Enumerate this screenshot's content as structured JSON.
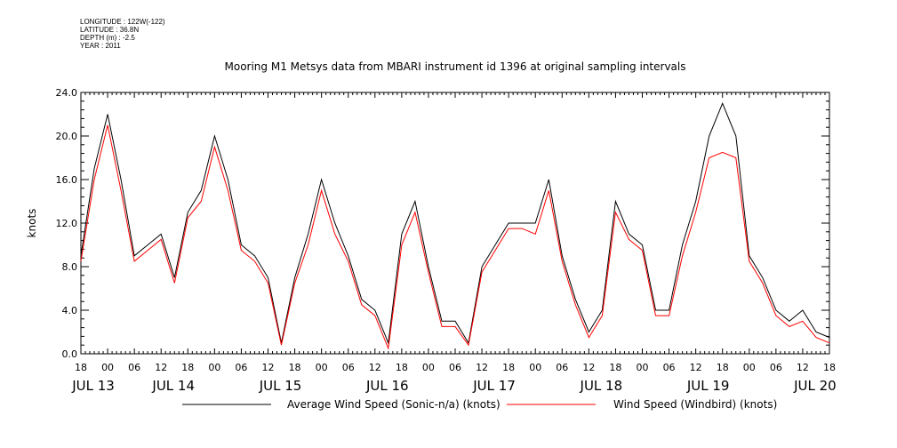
{
  "metadata": {
    "longitude": "LONGITUDE : 122W(-122)",
    "latitude": "LATITUDE : 36.8N",
    "depth": "DEPTH (m) : -2.5",
    "year": "YEAR : 2011"
  },
  "chart_data": {
    "type": "line",
    "title": "Mooring M1 Metsys data from MBARI instrument id 1396 at original sampling intervals",
    "ylabel": "knots",
    "xlabel": "",
    "ylim": [
      0,
      24
    ],
    "y_ticks": [
      "0.0",
      "4.0",
      "8.0",
      "12.0",
      "16.0",
      "20.0",
      "24.0"
    ],
    "xlim_hours": [
      0,
      168
    ],
    "x_tick_labels": [
      "18",
      "00",
      "06",
      "12",
      "18",
      "00",
      "06",
      "12",
      "18",
      "00",
      "06",
      "12",
      "18",
      "00",
      "06",
      "12",
      "18",
      "00",
      "06",
      "12",
      "18",
      "00",
      "06",
      "12",
      "18",
      "00",
      "06",
      "12",
      "18"
    ],
    "x_day_labels": [
      {
        "label": "JUL 13",
        "hour": 0
      },
      {
        "label": "JUL 14",
        "hour": 18
      },
      {
        "label": "JUL 15",
        "hour": 42
      },
      {
        "label": "JUL 16",
        "hour": 66
      },
      {
        "label": "JUL 17",
        "hour": 90
      },
      {
        "label": "JUL 18",
        "hour": 114
      },
      {
        "label": "JUL 19",
        "hour": 138
      },
      {
        "label": "JUL 20",
        "hour": 162
      }
    ],
    "series": [
      {
        "name": "Average Wind Speed (Sonic-n/a) (knots)",
        "color": "#000000",
        "x": [
          0,
          3,
          6,
          9,
          12,
          15,
          18,
          21,
          24,
          27,
          30,
          33,
          36,
          39,
          42,
          45,
          48,
          51,
          54,
          57,
          60,
          63,
          66,
          69,
          72,
          75,
          78,
          81,
          84,
          87,
          90,
          93,
          96,
          99,
          102,
          105,
          108,
          111,
          114,
          117,
          120,
          123,
          126,
          129,
          132,
          135,
          138,
          141,
          144,
          147,
          150,
          153,
          156,
          159,
          162,
          165,
          168
        ],
        "y": [
          9,
          17,
          22,
          16,
          9,
          10,
          11,
          7,
          13,
          15,
          20,
          16,
          10,
          9,
          7,
          1,
          7,
          11,
          16,
          12,
          9,
          5,
          4,
          1,
          11,
          14,
          8,
          3,
          3,
          1,
          8,
          10,
          12,
          12,
          12,
          16,
          9,
          5,
          2,
          4,
          14,
          11,
          10,
          4,
          4,
          10,
          14,
          20,
          23,
          20,
          9,
          7,
          4,
          3,
          4,
          2,
          1.5
        ]
      },
      {
        "name": "Wind Speed (Windbird) (knots)",
        "color": "#ff0000",
        "x": [
          0,
          3,
          6,
          9,
          12,
          15,
          18,
          21,
          24,
          27,
          30,
          33,
          36,
          39,
          42,
          45,
          48,
          51,
          54,
          57,
          60,
          63,
          66,
          69,
          72,
          75,
          78,
          81,
          84,
          87,
          90,
          93,
          96,
          99,
          102,
          105,
          108,
          111,
          114,
          117,
          120,
          123,
          126,
          129,
          132,
          135,
          138,
          141,
          144,
          147,
          150,
          153,
          156,
          159,
          162,
          165,
          168
        ],
        "y": [
          8.5,
          16,
          21,
          15,
          8.5,
          9.5,
          10.5,
          6.5,
          12.5,
          14,
          19,
          15,
          9.5,
          8.5,
          6.5,
          0.8,
          6.5,
          10,
          15,
          11,
          8.5,
          4.5,
          3.5,
          0.5,
          10,
          13,
          7.5,
          2.5,
          2.5,
          0.8,
          7.5,
          9.5,
          11.5,
          11.5,
          11,
          15,
          8.5,
          4.5,
          1.5,
          3.5,
          13,
          10.5,
          9.5,
          3.5,
          3.5,
          9,
          13,
          18,
          18.5,
          18,
          8.5,
          6.5,
          3.5,
          2.5,
          3,
          1.5,
          1
        ]
      }
    ],
    "legend_position": "bottom"
  }
}
